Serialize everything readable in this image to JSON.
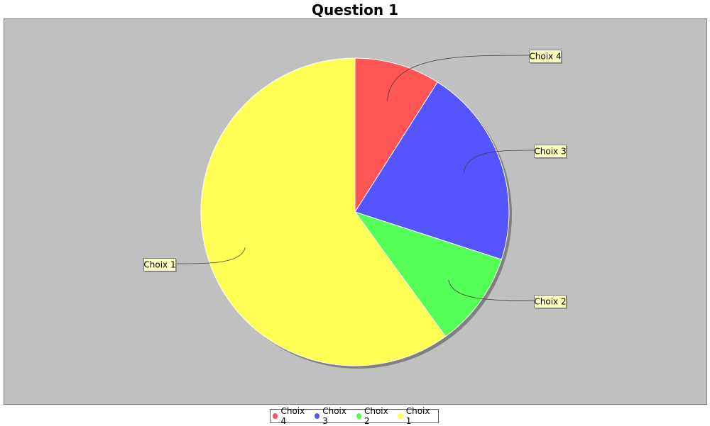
{
  "chart_data": {
    "type": "pie",
    "title": "Question 1",
    "slices": [
      {
        "label": "Choix 4",
        "value": 9,
        "color": "#FF5555"
      },
      {
        "label": "Choix 3",
        "value": 21,
        "color": "#5555FF"
      },
      {
        "label": "Choix 2",
        "value": 10,
        "color": "#55FF55"
      },
      {
        "label": "Choix 1",
        "value": 60,
        "color": "#FFFF55"
      }
    ],
    "start_angle_deg": 90,
    "direction": "clockwise",
    "legend_position": "bottom",
    "plot_background": "#C0C0C0",
    "label_box_color": "#FFFFC0"
  }
}
